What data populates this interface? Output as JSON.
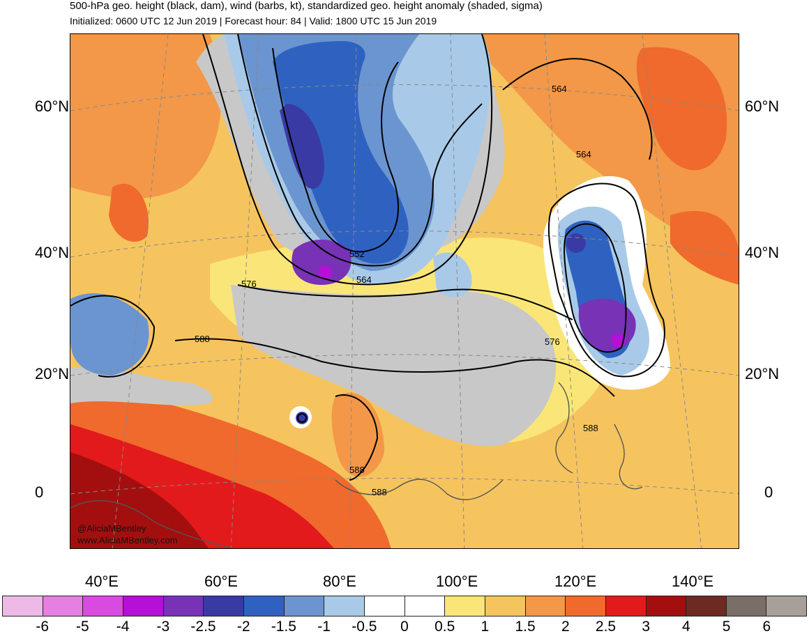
{
  "header": {
    "title": "500-hPa geo. height (black, dam), wind (barbs, kt), standardized geo. height anomaly (shaded, sigma)",
    "subtitle": "Initialized: 0600 UTC 12 Jun 2019 | Forecast hour: 84 | Valid: 1800 UTC 15 Jun 2019"
  },
  "map": {
    "lat_labels": [
      "60°N",
      "40°N",
      "20°N",
      "0"
    ],
    "lon_labels": [
      "40°E",
      "60°E",
      "80°E",
      "100°E",
      "120°E",
      "140°E"
    ],
    "contour_labels": [
      "564",
      "564",
      "552",
      "564",
      "576",
      "588",
      "576",
      "588",
      "588",
      "588"
    ],
    "credit": {
      "handle": "@AliciaMBentley",
      "site": "www.AliciaMBentley.com"
    }
  },
  "colorbar": {
    "ticks": [
      "-6",
      "-5",
      "-4",
      "-3",
      "-2.5",
      "-2",
      "-1.5",
      "-1",
      "-0.5",
      "0",
      "0.5",
      "1",
      "1.5",
      "2",
      "2.5",
      "3",
      "4",
      "5",
      "6"
    ],
    "colors": [
      "#eeb9e6",
      "#e57fe1",
      "#d84be0",
      "#b410d6",
      "#7832b6",
      "#3a3aa5",
      "#2f62c0",
      "#6b95d0",
      "#a8cae8",
      "#ffffff",
      "#ffffff",
      "#fae678",
      "#f6c45e",
      "#f29848",
      "#ef6a2c",
      "#e31a1c",
      "#a30f0f",
      "#6d2a22",
      "#7a6e68",
      "#a79f99"
    ]
  }
}
